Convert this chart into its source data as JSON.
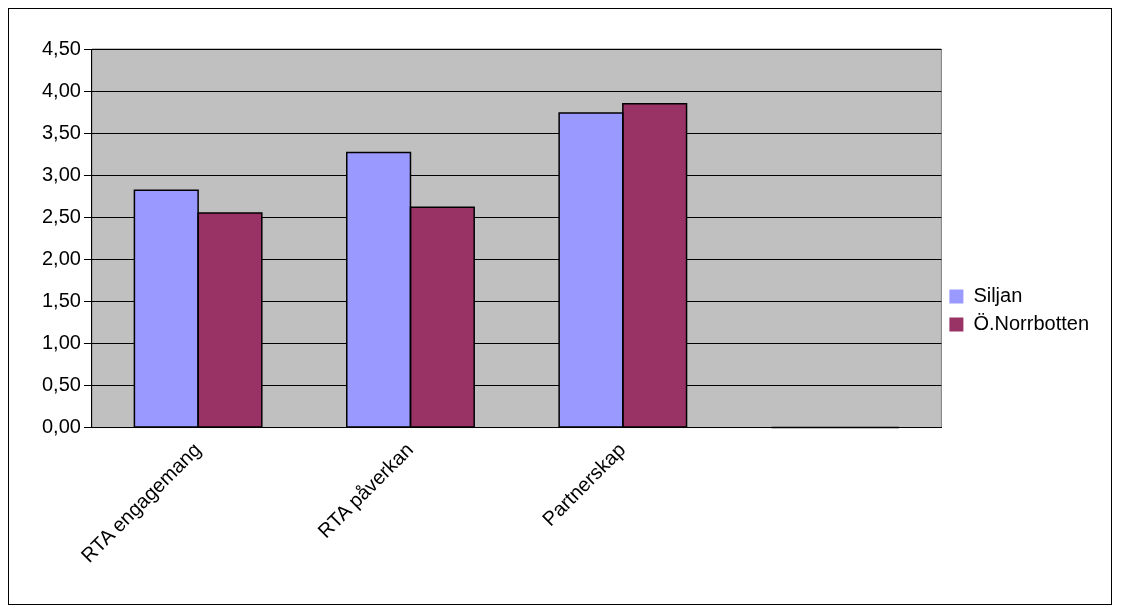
{
  "chart_data": {
    "type": "bar",
    "categories": [
      "RTA engagemang",
      "RTA påverkan",
      "Partnerskap",
      null
    ],
    "series": [
      {
        "name": "Siljan",
        "color": "#9999ff",
        "values": [
          2.82,
          3.27,
          3.74,
          null
        ]
      },
      {
        "name": "Ö.Norrbotten",
        "color": "#993366",
        "values": [
          2.55,
          2.62,
          3.85,
          null
        ]
      }
    ],
    "ylim": [
      0,
      4.5
    ],
    "yticks": [
      {
        "value": 0,
        "label": "0,00"
      },
      {
        "value": 0.5,
        "label": "0,50"
      },
      {
        "value": 1,
        "label": "1,00"
      },
      {
        "value": 1.5,
        "label": "1,50"
      },
      {
        "value": 2,
        "label": "2,00"
      },
      {
        "value": 2.5,
        "label": "2,50"
      },
      {
        "value": 3,
        "label": "3,00"
      },
      {
        "value": 3.5,
        "label": "3,50"
      },
      {
        "value": 4,
        "label": "4,00"
      },
      {
        "value": 4.5,
        "label": "4,50"
      }
    ],
    "grid": "y",
    "legend": "right"
  }
}
